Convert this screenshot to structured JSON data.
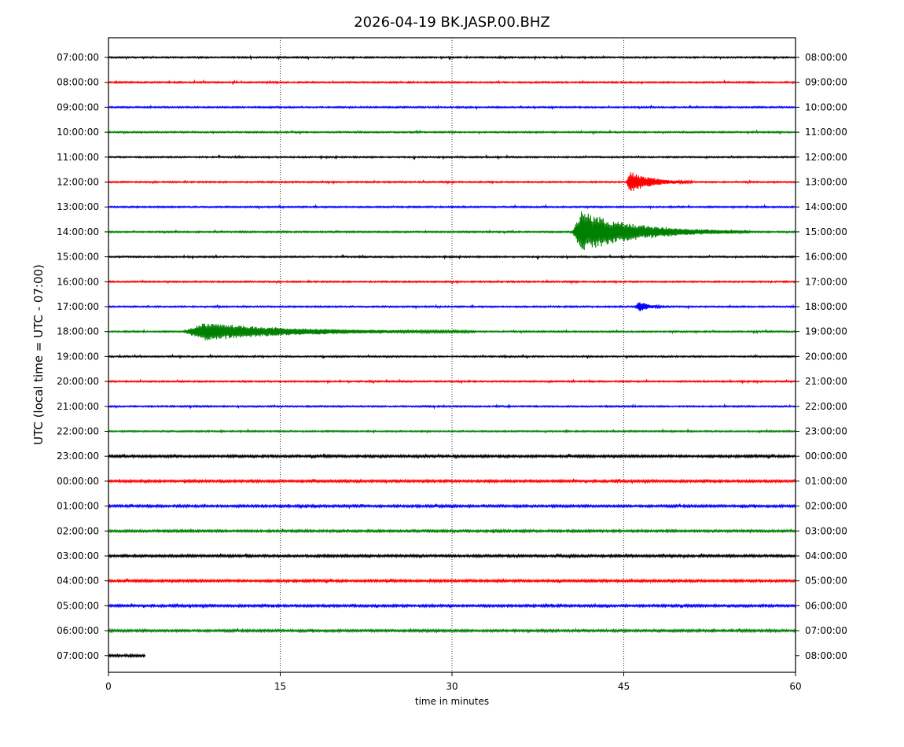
{
  "chart_data": {
    "type": "line",
    "title": "2026-04-19 BK.JASP.00.BHZ",
    "xlabel": "time in minutes",
    "ylabel": "UTC (local time = UTC - 07:00)",
    "xlim": [
      0,
      60
    ],
    "x_ticks": [
      0,
      15,
      30,
      45,
      60
    ],
    "grid_x": [
      15,
      30,
      45
    ],
    "left_labels": [
      "07:00:00",
      "08:00:00",
      "09:00:00",
      "10:00:00",
      "11:00:00",
      "12:00:00",
      "13:00:00",
      "14:00:00",
      "15:00:00",
      "16:00:00",
      "17:00:00",
      "18:00:00",
      "19:00:00",
      "20:00:00",
      "21:00:00",
      "22:00:00",
      "23:00:00",
      "00:00:00",
      "01:00:00",
      "02:00:00",
      "03:00:00",
      "04:00:00",
      "05:00:00",
      "06:00:00",
      "07:00:00"
    ],
    "right_labels": [
      "08:00:00",
      "09:00:00",
      "10:00:00",
      "11:00:00",
      "12:00:00",
      "13:00:00",
      "14:00:00",
      "15:00:00",
      "16:00:00",
      "17:00:00",
      "18:00:00",
      "19:00:00",
      "20:00:00",
      "21:00:00",
      "22:00:00",
      "23:00:00",
      "00:00:00",
      "01:00:00",
      "02:00:00",
      "03:00:00",
      "04:00:00",
      "05:00:00",
      "06:00:00",
      "07:00:00",
      "08:00:00"
    ],
    "trace_colors": [
      "#000000",
      "#ff0000",
      "#0000ff",
      "#008000"
    ],
    "last_trace_end_minute": 3.2,
    "events": [
      {
        "row": 5,
        "start_minute": 45.2,
        "end_minute": 51,
        "peak_minute": 45.6
      },
      {
        "row": 7,
        "start_minute": 40.5,
        "end_minute": 56,
        "peak_minute": 41.3
      },
      {
        "row": 10,
        "start_minute": 46.0,
        "end_minute": 48.5,
        "peak_minute": 46.4
      },
      {
        "row": 11,
        "start_minute": 6.5,
        "end_minute": 32,
        "peak_minute": 8.5
      }
    ]
  }
}
